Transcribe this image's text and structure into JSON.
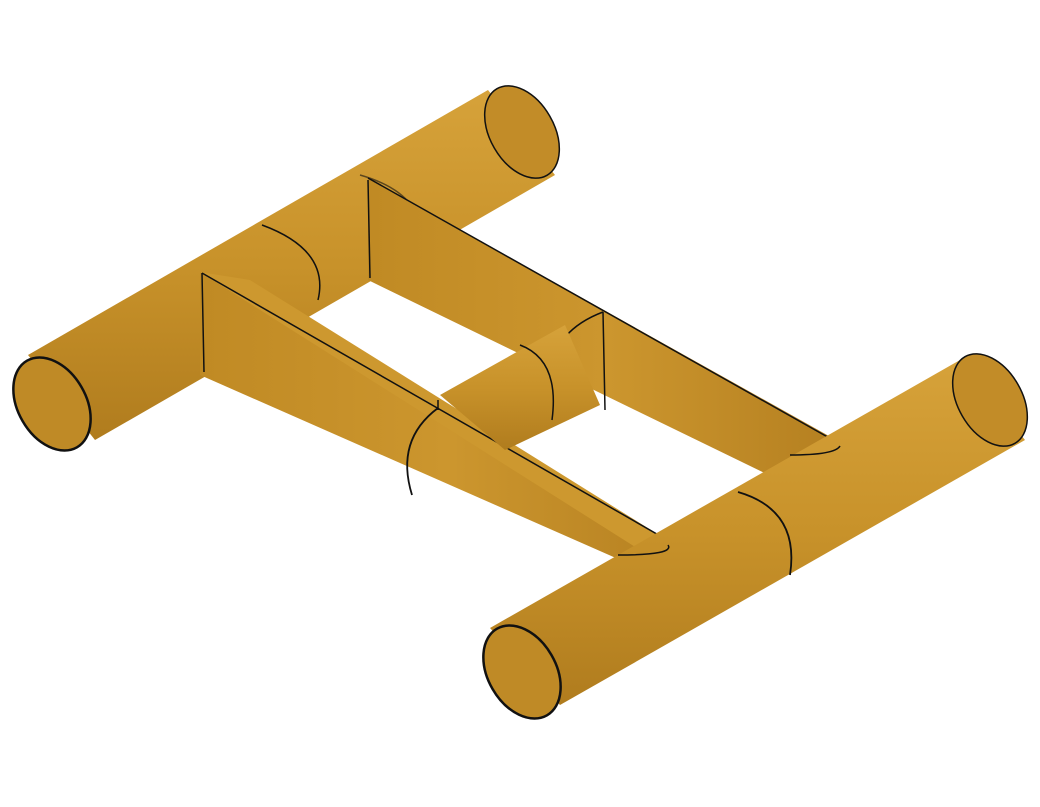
{
  "colors": {
    "background": "#ffffff",
    "tube_body": "#c8922a",
    "tube_shade": "#b07c1e",
    "tube_highlight": "#d6a23a",
    "tube_end": "#bf8a26",
    "edge": "#111111"
  },
  "model": {
    "shape": "tube frame",
    "tubes": [
      {
        "role": "end tube",
        "axis": "diagonal"
      },
      {
        "role": "end tube",
        "axis": "diagonal"
      },
      {
        "role": "rail",
        "axis": "cross"
      },
      {
        "role": "rail",
        "axis": "cross"
      },
      {
        "role": "middle tube",
        "axis": "diagonal"
      }
    ]
  }
}
